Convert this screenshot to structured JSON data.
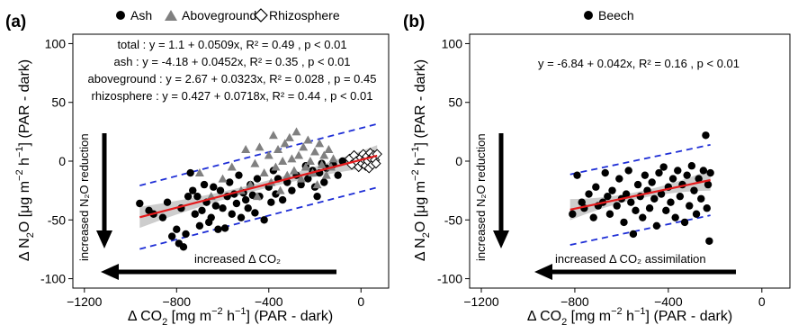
{
  "figure": {
    "panel_a_label": "(a)",
    "panel_b_label": "(b)",
    "legend_a": [
      {
        "label": "Ash",
        "marker": "circle",
        "color": "#000000"
      },
      {
        "label": "Aboveground",
        "marker": "triangle",
        "color": "#808080"
      },
      {
        "label": "Rhizosphere",
        "marker": "diamond-open",
        "color": "#000000"
      }
    ],
    "legend_b": [
      {
        "label": "Beech",
        "marker": "circle",
        "color": "#000000"
      }
    ],
    "ylabel_main": "Δ N₂O [μg m⁻² h⁻¹] (PAR - dark)",
    "xlabel_main": "Δ CO₂ [mg m⁻² h⁻¹] (PAR - dark)",
    "ylabel_parts": [
      "Δ N",
      "2",
      "O [μg m",
      "−2",
      " h",
      "−1",
      "] (PAR - dark)"
    ],
    "xlabel_parts": [
      "Δ CO",
      "2",
      " [mg m",
      "−2",
      " h",
      "−1",
      "] (PAR - dark)"
    ],
    "equations_a": [
      {
        "name": "total",
        "text": "total : y = 1.1 + 0.0509x,  R² = 0.49 , p < 0.01"
      },
      {
        "name": "ash",
        "text": "ash : y = -4.18 + 0.0452x,  R² = 0.35 , p < 0.01"
      },
      {
        "name": "aboveground",
        "text": "aboveground : y = 2.67 + 0.0323x,  R² = 0.028 , p = 0.45"
      },
      {
        "name": "rhizosphere",
        "text": "rhizosphere : y = 0.427 + 0.0718x,  R² = 0.44 , p < 0.01"
      }
    ],
    "equation_b": "y = -6.84 + 0.042x,  R² = 0.16 , p < 0.01",
    "annot_a_vertical": "increased N₂O reduction",
    "annot_a_horizontal": "increased Δ CO₂",
    "annot_b_vertical": "increased N₂O reduction",
    "annot_b_horizontal": "increased Δ CO₂ assimilation"
  },
  "colors": {
    "regression": "#e41a1c",
    "prediction_band": "#1f2fd6",
    "confidence": "#c0c0c0",
    "aboveground": "#808080"
  },
  "chart_data": [
    {
      "type": "scatter",
      "panel": "(a)",
      "xlim": [
        -1250,
        120
      ],
      "ylim": [
        -108,
        108
      ],
      "xticks": [
        -1200,
        -800,
        -400,
        0
      ],
      "yticks": [
        -100,
        -50,
        0,
        50,
        100
      ],
      "regression": {
        "intercept": 1.1,
        "slope": 0.0509,
        "x_range": [
          -960,
          70
        ]
      },
      "prediction_interval_offset": 27,
      "series": [
        {
          "name": "Ash",
          "marker": "circle",
          "points": [
            [
              -960,
              -36
            ],
            [
              -920,
              -42
            ],
            [
              -900,
              -45
            ],
            [
              -860,
              -48
            ],
            [
              -840,
              -35
            ],
            [
              -820,
              -64
            ],
            [
              -800,
              -58
            ],
            [
              -790,
              -70
            ],
            [
              -780,
              -40
            ],
            [
              -770,
              -73
            ],
            [
              -760,
              -62
            ],
            [
              -750,
              -30
            ],
            [
              -740,
              -10
            ],
            [
              -730,
              -25
            ],
            [
              -720,
              -45
            ],
            [
              -710,
              -30
            ],
            [
              -700,
              -55
            ],
            [
              -690,
              -42
            ],
            [
              -680,
              -20
            ],
            [
              -670,
              -35
            ],
            [
              -660,
              -52
            ],
            [
              -650,
              -48
            ],
            [
              -640,
              -22
            ],
            [
              -630,
              -38
            ],
            [
              -620,
              -58
            ],
            [
              -610,
              -25
            ],
            [
              -600,
              -40
            ],
            [
              -590,
              -57
            ],
            [
              -580,
              -30
            ],
            [
              -570,
              -18
            ],
            [
              -560,
              -45
            ],
            [
              -550,
              -28
            ],
            [
              -540,
              -36
            ],
            [
              -530,
              -12
            ],
            [
              -520,
              -48
            ],
            [
              -510,
              -27
            ],
            [
              -500,
              -33
            ],
            [
              -490,
              -40
            ],
            [
              -480,
              -20
            ],
            [
              -470,
              -29
            ],
            [
              -460,
              -44
            ],
            [
              -450,
              -15
            ],
            [
              -440,
              -30
            ],
            [
              -420,
              -50
            ],
            [
              -400,
              -22
            ],
            [
              -390,
              -35
            ],
            [
              -380,
              -8
            ],
            [
              -370,
              -28
            ],
            [
              -360,
              -15
            ],
            [
              -340,
              -33
            ],
            [
              -320,
              -18
            ],
            [
              -300,
              -25
            ],
            [
              -280,
              -12
            ],
            [
              -260,
              -20
            ],
            [
              -240,
              -4
            ],
            [
              -230,
              -15
            ],
            [
              -210,
              -8
            ],
            [
              -200,
              -22
            ],
            [
              -190,
              -30
            ],
            [
              -180,
              -10
            ],
            [
              -170,
              -2
            ],
            [
              -160,
              -18
            ],
            [
              -150,
              -6
            ],
            [
              -120,
              -3
            ],
            [
              -100,
              -12
            ],
            [
              -80,
              0
            ]
          ]
        },
        {
          "name": "Aboveground",
          "marker": "triangle",
          "points": [
            [
              -700,
              -10
            ],
            [
              -650,
              -30
            ],
            [
              -600,
              -15
            ],
            [
              -560,
              -5
            ],
            [
              -520,
              -25
            ],
            [
              -500,
              10
            ],
            [
              -480,
              -20
            ],
            [
              -460,
              -2
            ],
            [
              -450,
              -30
            ],
            [
              -440,
              12
            ],
            [
              -420,
              -10
            ],
            [
              -400,
              5
            ],
            [
              -390,
              -18
            ],
            [
              -380,
              22
            ],
            [
              -370,
              -5
            ],
            [
              -360,
              10
            ],
            [
              -350,
              -25
            ],
            [
              -340,
              0
            ],
            [
              -330,
              15
            ],
            [
              -320,
              -12
            ],
            [
              -310,
              20
            ],
            [
              -300,
              2
            ],
            [
              -290,
              -8
            ],
            [
              -280,
              25
            ],
            [
              -270,
              5
            ],
            [
              -260,
              -15
            ],
            [
              -250,
              12
            ],
            [
              -240,
              -5
            ],
            [
              -230,
              18
            ],
            [
              -220,
              0
            ],
            [
              -210,
              -10
            ],
            [
              -200,
              8
            ],
            [
              -190,
              -20
            ],
            [
              -180,
              15
            ],
            [
              -170,
              -3
            ],
            [
              -160,
              5
            ],
            [
              -150,
              -12
            ],
            [
              -140,
              10
            ],
            [
              -130,
              -5
            ],
            [
              -120,
              2
            ]
          ]
        },
        {
          "name": "Rhizosphere",
          "marker": "diamond-open",
          "points": [
            [
              -50,
              2
            ],
            [
              -40,
              -3
            ],
            [
              -30,
              5
            ],
            [
              -20,
              0
            ],
            [
              -10,
              -5
            ],
            [
              0,
              3
            ],
            [
              5,
              -2
            ],
            [
              10,
              6
            ],
            [
              15,
              1
            ],
            [
              20,
              -4
            ],
            [
              25,
              4
            ],
            [
              30,
              0
            ],
            [
              35,
              -6
            ],
            [
              40,
              7
            ],
            [
              45,
              2
            ],
            [
              50,
              -3
            ],
            [
              55,
              5
            ],
            [
              60,
              1
            ],
            [
              65,
              -2
            ],
            [
              70,
              6
            ]
          ]
        }
      ]
    },
    {
      "type": "scatter",
      "panel": "(b)",
      "xlim": [
        -1250,
        120
      ],
      "ylim": [
        -108,
        108
      ],
      "xticks": [
        -1200,
        -800,
        -400,
        0
      ],
      "yticks": [
        -100,
        -50,
        0,
        50,
        100
      ],
      "regression": {
        "intercept": -6.84,
        "slope": 0.042,
        "x_range": [
          -820,
          -220
        ]
      },
      "prediction_interval_offset": 30,
      "series": [
        {
          "name": "Beech",
          "marker": "circle",
          "points": [
            [
              -810,
              -45
            ],
            [
              -790,
              -12
            ],
            [
              -770,
              -35
            ],
            [
              -760,
              -40
            ],
            [
              -740,
              -28
            ],
            [
              -720,
              -48
            ],
            [
              -710,
              -22
            ],
            [
              -700,
              -38
            ],
            [
              -680,
              -35
            ],
            [
              -670,
              -10
            ],
            [
              -660,
              -30
            ],
            [
              -650,
              -45
            ],
            [
              -640,
              -25
            ],
            [
              -620,
              -38
            ],
            [
              -610,
              -15
            ],
            [
              -600,
              -32
            ],
            [
              -590,
              -52
            ],
            [
              -580,
              -28
            ],
            [
              -570,
              -8
            ],
            [
              -560,
              -35
            ],
            [
              -550,
              -62
            ],
            [
              -540,
              -42
            ],
            [
              -530,
              -20
            ],
            [
              -520,
              -30
            ],
            [
              -510,
              -48
            ],
            [
              -500,
              -12
            ],
            [
              -490,
              -25
            ],
            [
              -480,
              -40
            ],
            [
              -470,
              -18
            ],
            [
              -460,
              -32
            ],
            [
              -450,
              -55
            ],
            [
              -440,
              -10
            ],
            [
              -430,
              -28
            ],
            [
              -420,
              -5
            ],
            [
              -410,
              -42
            ],
            [
              -400,
              -22
            ],
            [
              -390,
              -35
            ],
            [
              -380,
              -15
            ],
            [
              -370,
              -48
            ],
            [
              -360,
              -8
            ],
            [
              -350,
              -30
            ],
            [
              -340,
              -20
            ],
            [
              -330,
              -52
            ],
            [
              -320,
              -12
            ],
            [
              -310,
              -38
            ],
            [
              -300,
              -4
            ],
            [
              -290,
              -25
            ],
            [
              -280,
              -45
            ],
            [
              -270,
              -15
            ],
            [
              -260,
              -32
            ],
            [
              -250,
              -8
            ],
            [
              -240,
              22
            ],
            [
              -235,
              -40
            ],
            [
              -230,
              -20
            ],
            [
              -225,
              -68
            ],
            [
              -220,
              -10
            ]
          ]
        }
      ]
    }
  ]
}
